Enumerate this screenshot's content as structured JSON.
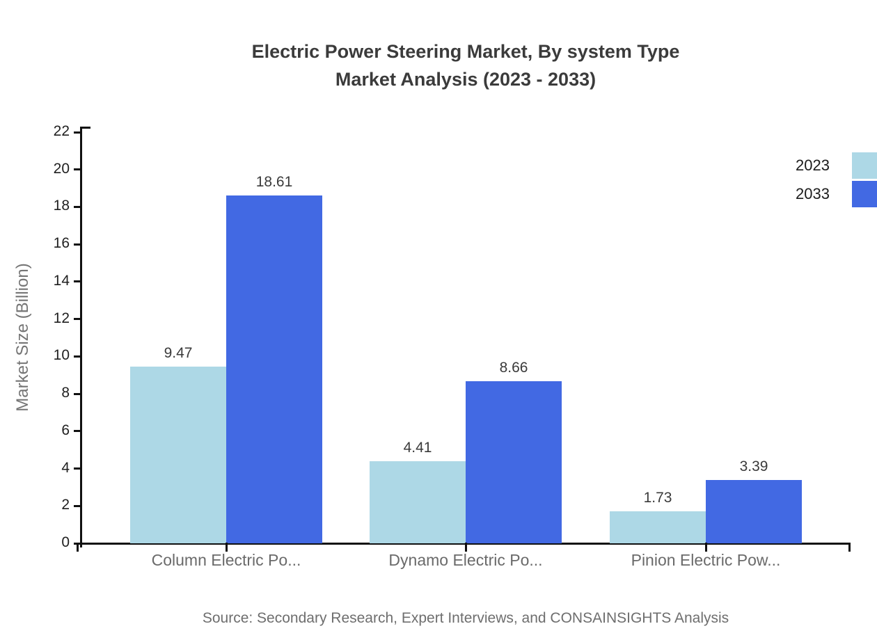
{
  "page": {
    "background": "#ffffff"
  },
  "title": {
    "line1": "Electric Power Steering Market, By system Type",
    "line2": "Market Analysis (2023 - 2033)"
  },
  "source_note": "Source: Secondary Research, Expert Interviews, and CONSAINSIGHTS Analysis",
  "legend": {
    "items": [
      {
        "label": "2023",
        "color": "#ADD8E6"
      },
      {
        "label": "2033",
        "color": "#4269E3"
      }
    ]
  },
  "chart_data": {
    "type": "bar",
    "title": "Electric Power Steering Market, By system Type Market Analysis (2023 - 2033)",
    "categories": [
      "Column Electric Po...",
      "Dynamo Electric Po...",
      "Pinion Electric Pow..."
    ],
    "series": [
      {
        "name": "2023",
        "color": "#ADD8E6",
        "values": [
          9.47,
          4.41,
          1.73
        ]
      },
      {
        "name": "2033",
        "color": "#4269E3",
        "values": [
          18.61,
          8.66,
          3.39
        ]
      }
    ],
    "xlabel": "",
    "ylabel": "Market Size (Billion)",
    "ylim": [
      0,
      22
    ],
    "yticks": [
      0,
      2,
      4,
      6,
      8,
      10,
      12,
      14,
      16,
      18,
      20,
      22
    ],
    "grid": false,
    "legend_position": "top-right",
    "value_labels": true,
    "value_label_format": "0.00",
    "axis_color": "#111111",
    "tick_label_color": "#1f1f1f",
    "category_label_color": "#6a6a6a",
    "value_label_color": "#3a3a3a"
  }
}
